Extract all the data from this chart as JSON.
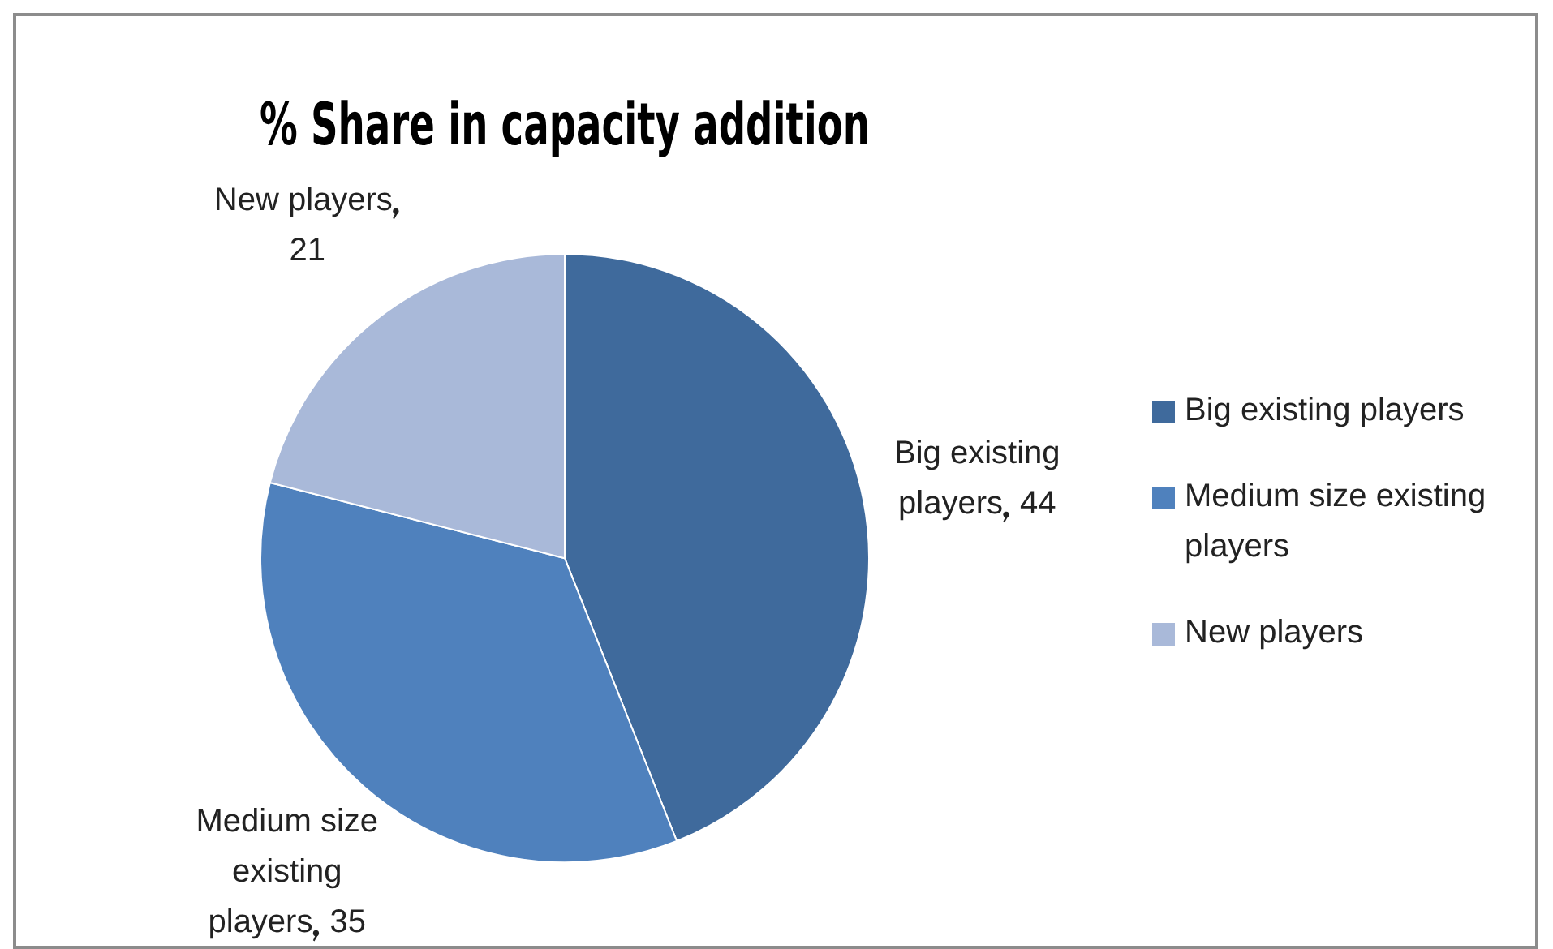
{
  "chart_data": {
    "type": "pie",
    "title": "% Share in capacity addition",
    "categories": [
      "Big existing players",
      "Medium size existing players",
      "New players"
    ],
    "values": [
      44,
      35,
      21
    ],
    "colors": [
      "#3f6a9c",
      "#4f81bd",
      "#a9b9d9"
    ],
    "data_labels": true,
    "legend": "right"
  }
}
